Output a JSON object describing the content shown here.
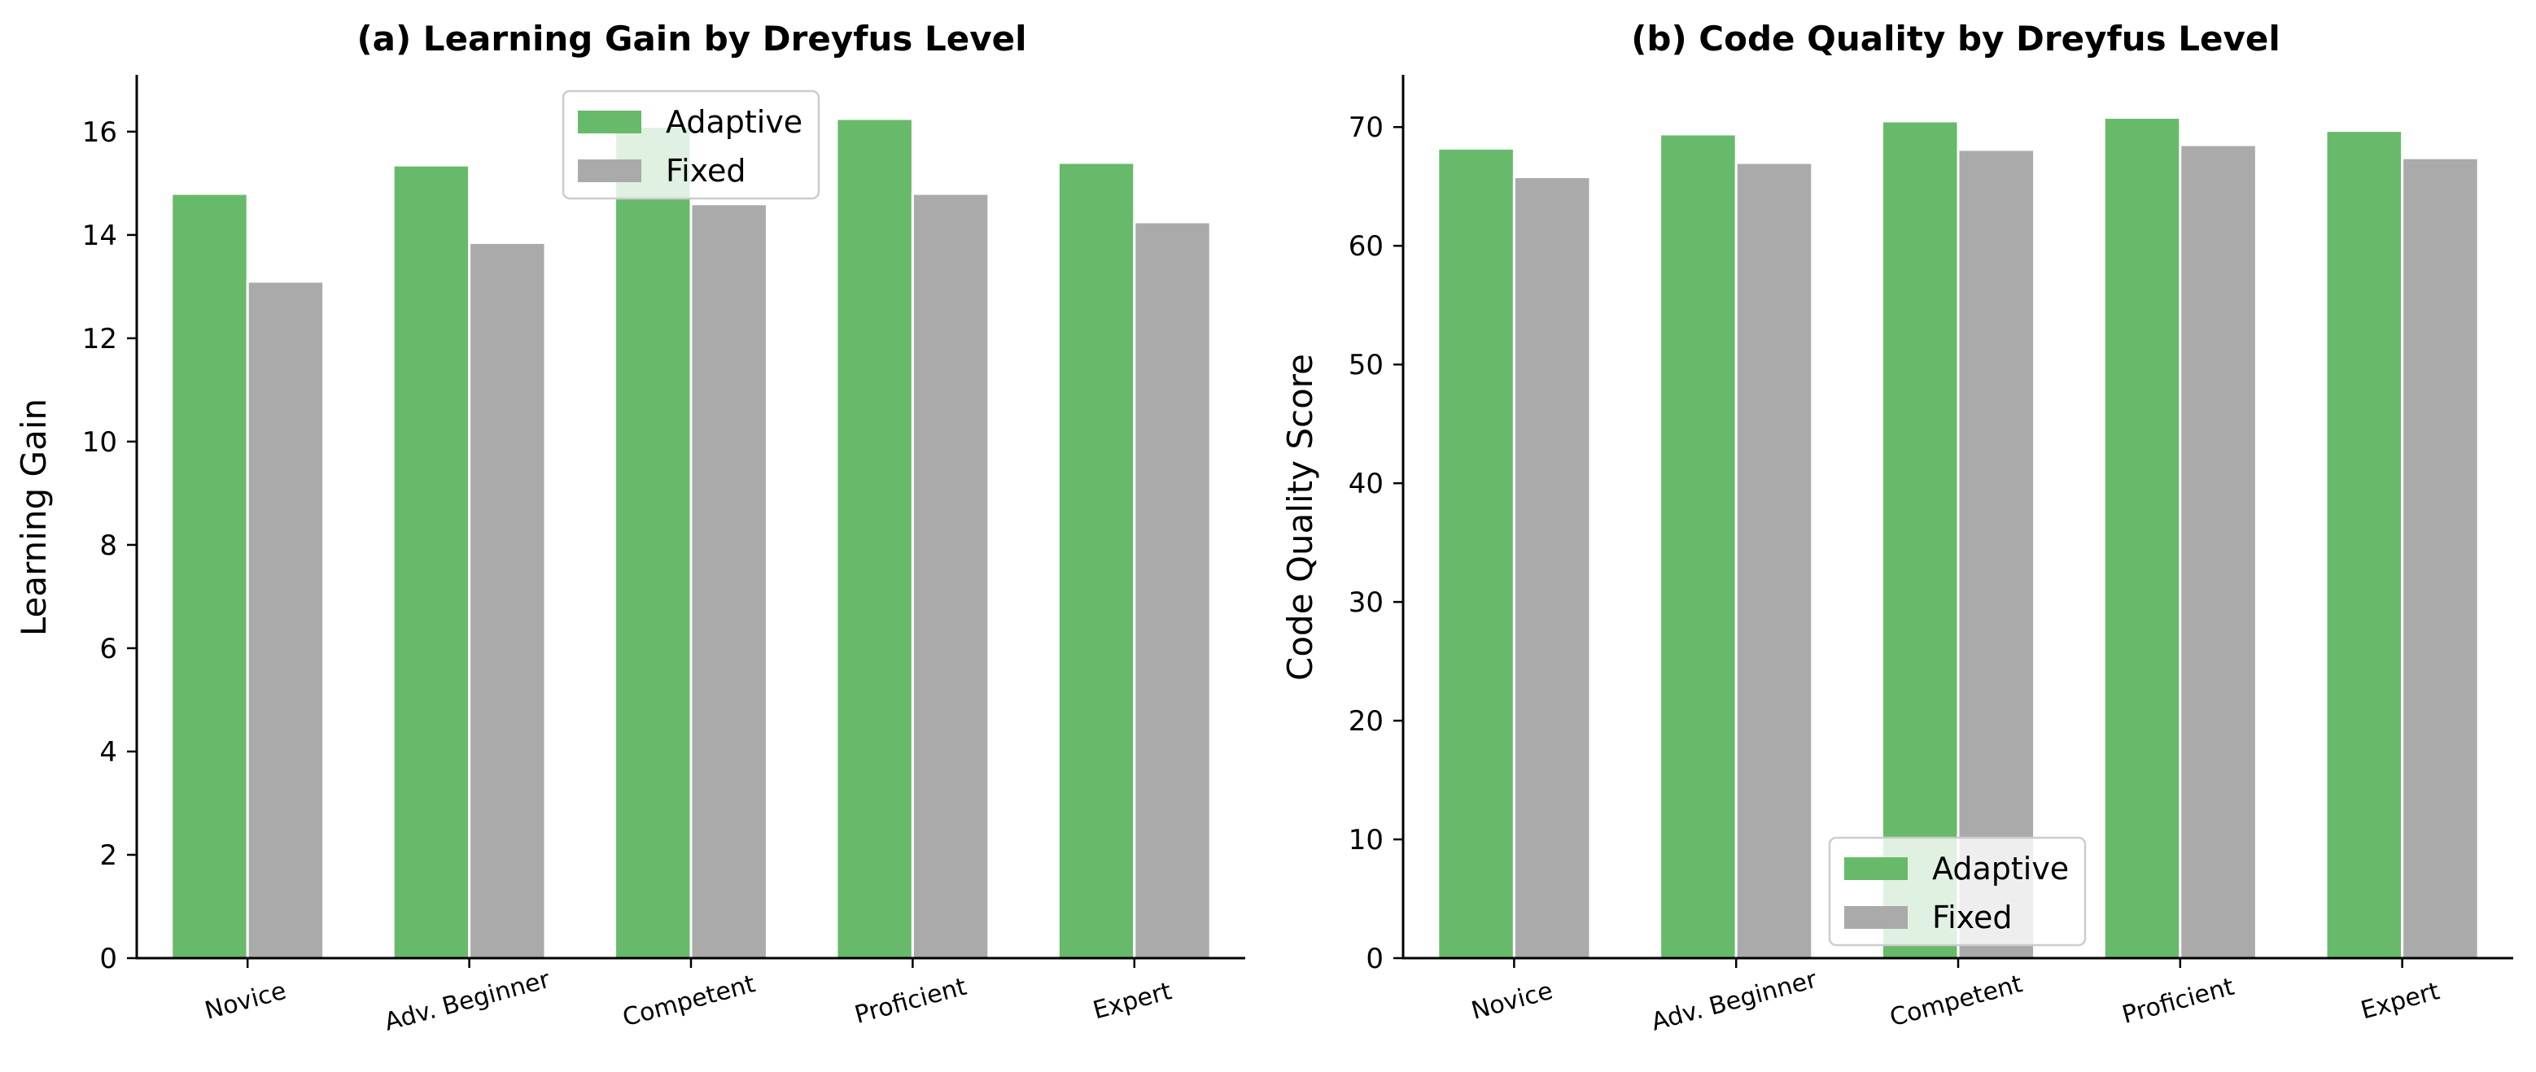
{
  "figure": {
    "layout": "two side-by-side grouped bar charts"
  },
  "chart_data": [
    {
      "type": "bar",
      "title": "(a) Learning Gain by Dreyfus Level",
      "xlabel": "",
      "ylabel": "Learning Gain",
      "categories": [
        "Novice",
        "Adv. Beginner",
        "Competent",
        "Proficient",
        "Expert"
      ],
      "series": [
        {
          "name": "Adaptive",
          "color": "#67ba6a",
          "values": [
            14.8,
            15.35,
            16.1,
            16.25,
            15.4
          ]
        },
        {
          "name": "Fixed",
          "color": "#aaaaaa",
          "values": [
            13.1,
            13.85,
            14.6,
            14.8,
            14.25
          ]
        }
      ],
      "ylim": [
        0,
        17.1
      ],
      "yticks": [
        0,
        2,
        4,
        6,
        8,
        10,
        12,
        14,
        16
      ],
      "grid": false,
      "legend": "top-center"
    },
    {
      "type": "bar",
      "title": "(b) Code Quality by Dreyfus Level",
      "xlabel": "",
      "ylabel": "Code Quality Score",
      "categories": [
        "Novice",
        "Adv. Beginner",
        "Competent",
        "Proficient",
        "Expert"
      ],
      "series": [
        {
          "name": "Adaptive",
          "color": "#67ba6a",
          "values": [
            68.2,
            69.4,
            70.5,
            70.8,
            69.7
          ]
        },
        {
          "name": "Fixed",
          "color": "#aaaaaa",
          "values": [
            65.8,
            67.0,
            68.1,
            68.5,
            67.4
          ]
        }
      ],
      "ylim": [
        0,
        74.4
      ],
      "yticks": [
        0,
        10,
        20,
        30,
        40,
        50,
        60,
        70
      ],
      "grid": false,
      "legend": "bottom-center"
    }
  ]
}
